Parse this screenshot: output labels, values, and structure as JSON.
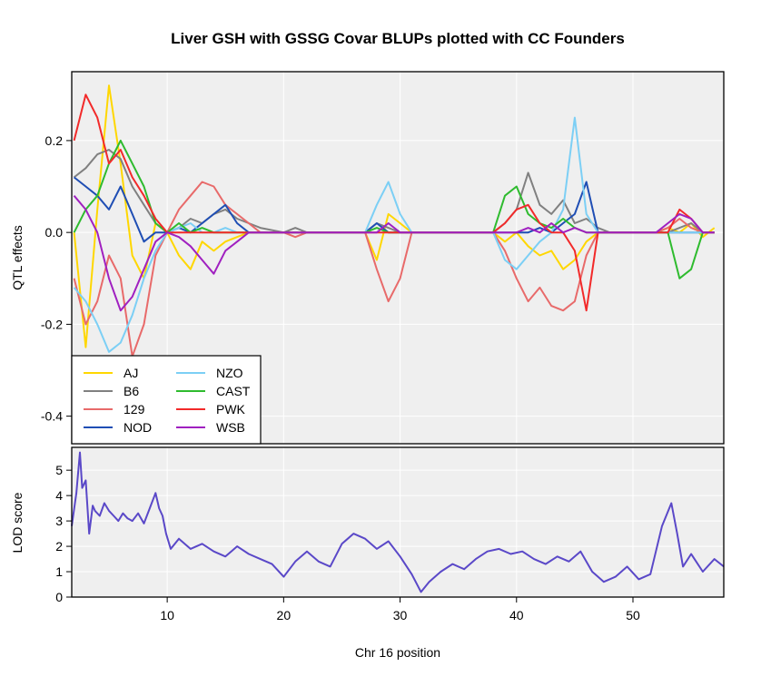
{
  "chart_data": [
    {
      "type": "line",
      "title": "Liver GSH with GSSG Covar BLUPs plotted with CC Founders",
      "xlabel": "",
      "ylabel": "QTL effects",
      "xlim": [
        1.8,
        57.8
      ],
      "ylim": [
        -0.46,
        0.35
      ],
      "yticks": [
        0.2,
        0.0,
        -0.2,
        -0.4
      ],
      "ytick_labels": [
        "0.2",
        "0.0",
        "-0.2",
        "-0.4"
      ],
      "grid": true,
      "legend_position": "bottom-left",
      "series": [
        {
          "name": "AJ",
          "color": "#FFD700",
          "x": [
            2,
            3,
            4,
            5,
            6,
            7,
            8,
            9,
            10,
            11,
            12,
            13,
            14,
            15,
            16,
            17,
            18,
            20,
            21,
            22,
            23,
            24,
            27,
            28,
            29,
            30,
            31,
            37,
            38,
            39,
            40,
            41,
            42,
            43,
            44,
            45,
            46,
            47,
            48,
            49,
            50,
            51,
            52,
            53,
            54,
            55,
            56,
            57
          ],
          "values": [
            0.0,
            -0.25,
            0.05,
            0.32,
            0.15,
            -0.05,
            -0.1,
            0.02,
            0.0,
            -0.05,
            -0.08,
            -0.02,
            -0.04,
            -0.02,
            -0.01,
            0.0,
            0.0,
            0.0,
            0.0,
            0.0,
            0.0,
            0.0,
            0.0,
            -0.06,
            0.04,
            0.02,
            0.0,
            0.0,
            0.0,
            -0.02,
            0.0,
            -0.03,
            -0.05,
            -0.04,
            -0.08,
            -0.06,
            -0.02,
            0.0,
            0.0,
            0.0,
            0.0,
            0.0,
            0.0,
            0.01,
            0.0,
            0.02,
            -0.01,
            0.01
          ]
        },
        {
          "name": "B6",
          "color": "#808080",
          "x": [
            2,
            3,
            4,
            5,
            6,
            7,
            8,
            9,
            10,
            11,
            12,
            13,
            14,
            15,
            16,
            17,
            18,
            20,
            21,
            22,
            23,
            24,
            27,
            28,
            29,
            30,
            31,
            37,
            38,
            39,
            40,
            41,
            42,
            43,
            44,
            45,
            46,
            47,
            48,
            49,
            50,
            51,
            52,
            53,
            54,
            55,
            56,
            57
          ],
          "values": [
            0.12,
            0.14,
            0.17,
            0.18,
            0.16,
            0.1,
            0.06,
            0.02,
            0.0,
            0.01,
            0.03,
            0.02,
            0.04,
            0.05,
            0.03,
            0.02,
            0.01,
            0.0,
            0.01,
            0.0,
            0.0,
            0.0,
            0.0,
            0.02,
            0.01,
            0.0,
            0.0,
            0.0,
            0.0,
            0.02,
            0.05,
            0.13,
            0.06,
            0.04,
            0.07,
            0.02,
            0.03,
            0.01,
            0.0,
            0.0,
            0.0,
            0.0,
            0.0,
            0.0,
            0.01,
            0.02,
            0.0,
            0.0
          ]
        },
        {
          "name": "129",
          "color": "#E86A6A",
          "x": [
            2,
            3,
            4,
            5,
            6,
            7,
            8,
            9,
            10,
            11,
            12,
            13,
            14,
            15,
            16,
            17,
            18,
            20,
            21,
            22,
            23,
            24,
            27,
            28,
            29,
            30,
            31,
            37,
            38,
            39,
            40,
            41,
            42,
            43,
            44,
            45,
            46,
            47,
            48,
            49,
            50,
            51,
            52,
            53,
            54,
            55,
            56,
            57
          ],
          "values": [
            -0.1,
            -0.2,
            -0.15,
            -0.05,
            -0.1,
            -0.27,
            -0.2,
            -0.05,
            0.0,
            0.05,
            0.08,
            0.11,
            0.1,
            0.06,
            0.04,
            0.02,
            0.0,
            0.0,
            -0.01,
            0.0,
            0.0,
            0.0,
            0.0,
            -0.08,
            -0.15,
            -0.1,
            0.0,
            0.0,
            0.0,
            -0.04,
            -0.1,
            -0.15,
            -0.12,
            -0.16,
            -0.17,
            -0.15,
            -0.05,
            0.0,
            0.0,
            0.0,
            0.0,
            0.0,
            0.0,
            0.01,
            0.03,
            0.01,
            0.0,
            0.0
          ]
        },
        {
          "name": "NOD",
          "color": "#1F4EB4",
          "x": [
            2,
            3,
            4,
            5,
            6,
            7,
            8,
            9,
            10,
            11,
            12,
            13,
            14,
            15,
            16,
            17,
            18,
            20,
            21,
            22,
            23,
            24,
            27,
            28,
            29,
            30,
            31,
            37,
            38,
            39,
            40,
            41,
            42,
            43,
            44,
            45,
            46,
            47,
            48,
            49,
            50,
            51,
            52,
            53,
            54,
            55,
            56,
            57
          ],
          "values": [
            0.12,
            0.1,
            0.08,
            0.05,
            0.1,
            0.04,
            -0.02,
            0.0,
            0.0,
            0.01,
            0.0,
            0.02,
            0.04,
            0.06,
            0.02,
            0.0,
            0.0,
            0.0,
            0.0,
            0.0,
            0.0,
            0.0,
            0.0,
            0.02,
            0.0,
            0.0,
            0.0,
            0.0,
            0.0,
            0.0,
            0.0,
            0.0,
            0.01,
            0.0,
            0.02,
            0.04,
            0.11,
            0.0,
            0.0,
            0.0,
            0.0,
            0.0,
            0.0,
            0.0,
            0.0,
            0.0,
            0.0,
            0.0
          ]
        },
        {
          "name": "NZO",
          "color": "#7CCFF5",
          "x": [
            2,
            3,
            4,
            5,
            6,
            7,
            8,
            9,
            10,
            11,
            12,
            13,
            14,
            15,
            16,
            17,
            18,
            20,
            21,
            22,
            23,
            24,
            27,
            28,
            29,
            30,
            31,
            37,
            38,
            39,
            40,
            41,
            42,
            43,
            44,
            45,
            46,
            47,
            48,
            49,
            50,
            51,
            52,
            53,
            54,
            55,
            56,
            57
          ],
          "values": [
            -0.12,
            -0.15,
            -0.2,
            -0.26,
            -0.24,
            -0.18,
            -0.1,
            -0.04,
            0.0,
            0.01,
            0.02,
            0.0,
            0.0,
            0.01,
            0.0,
            0.0,
            0.0,
            0.0,
            0.0,
            0.0,
            0.0,
            0.0,
            0.0,
            0.06,
            0.11,
            0.04,
            0.0,
            0.0,
            0.0,
            -0.06,
            -0.08,
            -0.05,
            -0.02,
            0.0,
            0.05,
            0.25,
            0.04,
            0.0,
            0.0,
            0.0,
            0.0,
            0.0,
            0.0,
            0.0,
            0.0,
            0.0,
            0.0,
            0.0
          ]
        },
        {
          "name": "CAST",
          "color": "#2EBB2E",
          "x": [
            2,
            3,
            4,
            5,
            6,
            7,
            8,
            9,
            10,
            11,
            12,
            13,
            14,
            15,
            16,
            17,
            18,
            20,
            21,
            22,
            23,
            24,
            27,
            28,
            29,
            30,
            31,
            37,
            38,
            39,
            40,
            41,
            42,
            43,
            44,
            45,
            46,
            47,
            48,
            49,
            50,
            51,
            52,
            53,
            54,
            55,
            56,
            57
          ],
          "values": [
            0.0,
            0.05,
            0.08,
            0.15,
            0.2,
            0.15,
            0.1,
            0.02,
            0.0,
            0.02,
            0.0,
            0.01,
            0.0,
            0.0,
            0.0,
            0.0,
            0.0,
            0.0,
            0.0,
            0.0,
            0.0,
            0.0,
            0.0,
            0.01,
            0.0,
            0.0,
            0.0,
            0.0,
            0.0,
            0.08,
            0.1,
            0.04,
            0.02,
            0.01,
            0.03,
            0.01,
            0.0,
            0.0,
            0.0,
            0.0,
            0.0,
            0.0,
            0.0,
            0.0,
            -0.1,
            -0.08,
            0.0,
            0.0
          ]
        },
        {
          "name": "PWK",
          "color": "#F22A2A",
          "x": [
            2,
            3,
            4,
            5,
            6,
            7,
            8,
            9,
            10,
            11,
            12,
            13,
            14,
            15,
            16,
            17,
            18,
            20,
            21,
            22,
            23,
            24,
            27,
            28,
            29,
            30,
            31,
            37,
            38,
            39,
            40,
            41,
            42,
            43,
            44,
            45,
            46,
            47,
            48,
            49,
            50,
            51,
            52,
            53,
            54,
            55,
            56,
            57
          ],
          "values": [
            0.2,
            0.3,
            0.25,
            0.15,
            0.18,
            0.12,
            0.08,
            0.03,
            0.0,
            0.0,
            0.0,
            0.0,
            0.0,
            0.0,
            0.0,
            0.0,
            0.0,
            0.0,
            0.0,
            0.0,
            0.0,
            0.0,
            0.0,
            0.0,
            0.0,
            0.0,
            0.0,
            0.0,
            0.0,
            0.02,
            0.05,
            0.06,
            0.02,
            0.0,
            0.0,
            -0.04,
            -0.17,
            0.0,
            0.0,
            0.0,
            0.0,
            0.0,
            0.0,
            0.0,
            0.05,
            0.03,
            0.0,
            0.0
          ]
        },
        {
          "name": "WSB",
          "color": "#A020C0",
          "x": [
            2,
            3,
            4,
            5,
            6,
            7,
            8,
            9,
            10,
            11,
            12,
            13,
            14,
            15,
            16,
            17,
            18,
            20,
            21,
            22,
            23,
            24,
            27,
            28,
            29,
            30,
            31,
            37,
            38,
            39,
            40,
            41,
            42,
            43,
            44,
            45,
            46,
            47,
            48,
            49,
            50,
            51,
            52,
            53,
            54,
            55,
            56,
            57
          ],
          "values": [
            0.08,
            0.05,
            0.0,
            -0.1,
            -0.17,
            -0.14,
            -0.08,
            -0.02,
            0.0,
            -0.01,
            -0.03,
            -0.06,
            -0.09,
            -0.04,
            -0.02,
            0.0,
            0.0,
            0.0,
            0.0,
            0.0,
            0.0,
            0.0,
            0.0,
            0.0,
            0.02,
            0.0,
            0.0,
            0.0,
            0.0,
            0.0,
            0.0,
            0.01,
            0.0,
            0.02,
            0.0,
            0.01,
            0.0,
            0.0,
            0.0,
            0.0,
            0.0,
            0.0,
            0.0,
            0.02,
            0.04,
            0.03,
            0.0,
            0.0
          ]
        }
      ]
    },
    {
      "type": "line",
      "xlabel": "Chr 16 position",
      "ylabel": "LOD score",
      "xlim": [
        1.8,
        57.8
      ],
      "ylim": [
        0,
        5.9
      ],
      "xticks": [
        10,
        20,
        30,
        40,
        50
      ],
      "xtick_labels": [
        "10",
        "20",
        "30",
        "40",
        "50"
      ],
      "yticks": [
        0,
        1,
        2,
        3,
        4,
        5
      ],
      "ytick_labels": [
        "0",
        "1",
        "2",
        "3",
        "4",
        "5"
      ],
      "grid": true,
      "series": [
        {
          "name": "",
          "color": "#5A48C8",
          "x": [
            1.8,
            2.2,
            2.5,
            2.7,
            3.0,
            3.3,
            3.6,
            3.8,
            4.2,
            4.6,
            5.0,
            5.4,
            5.8,
            6.2,
            6.6,
            7.0,
            7.5,
            8.0,
            8.5,
            9.0,
            9.3,
            9.6,
            9.9,
            10.3,
            11.0,
            12.0,
            13.0,
            14.0,
            15.0,
            16.0,
            17.0,
            18.0,
            19.0,
            20.0,
            21.0,
            22.0,
            23.0,
            24.0,
            25.0,
            26.0,
            27.0,
            28.0,
            29.0,
            30.0,
            31.0,
            31.8,
            32.5,
            33.5,
            34.5,
            35.5,
            36.5,
            37.5,
            38.5,
            39.5,
            40.5,
            41.5,
            42.5,
            43.5,
            44.5,
            45.5,
            46.5,
            47.5,
            48.5,
            49.5,
            50.5,
            51.5,
            52.5,
            53.3,
            53.8,
            54.3,
            55.0,
            56.0,
            57.0,
            57.8
          ],
          "values": [
            2.8,
            4.1,
            5.7,
            4.3,
            4.6,
            2.5,
            3.6,
            3.4,
            3.2,
            3.7,
            3.4,
            3.2,
            3.0,
            3.3,
            3.1,
            3.0,
            3.3,
            2.9,
            3.5,
            4.1,
            3.5,
            3.2,
            2.5,
            1.9,
            2.3,
            1.9,
            2.1,
            1.8,
            1.6,
            2.0,
            1.7,
            1.5,
            1.3,
            0.8,
            1.4,
            1.8,
            1.4,
            1.2,
            2.1,
            2.5,
            2.3,
            1.9,
            2.2,
            1.6,
            0.9,
            0.2,
            0.6,
            1.0,
            1.3,
            1.1,
            1.5,
            1.8,
            1.9,
            1.7,
            1.8,
            1.5,
            1.3,
            1.6,
            1.4,
            1.8,
            1.0,
            0.6,
            0.8,
            1.2,
            0.7,
            0.9,
            2.8,
            3.7,
            2.5,
            1.2,
            1.7,
            1.0,
            1.5,
            1.2
          ]
        }
      ]
    }
  ]
}
